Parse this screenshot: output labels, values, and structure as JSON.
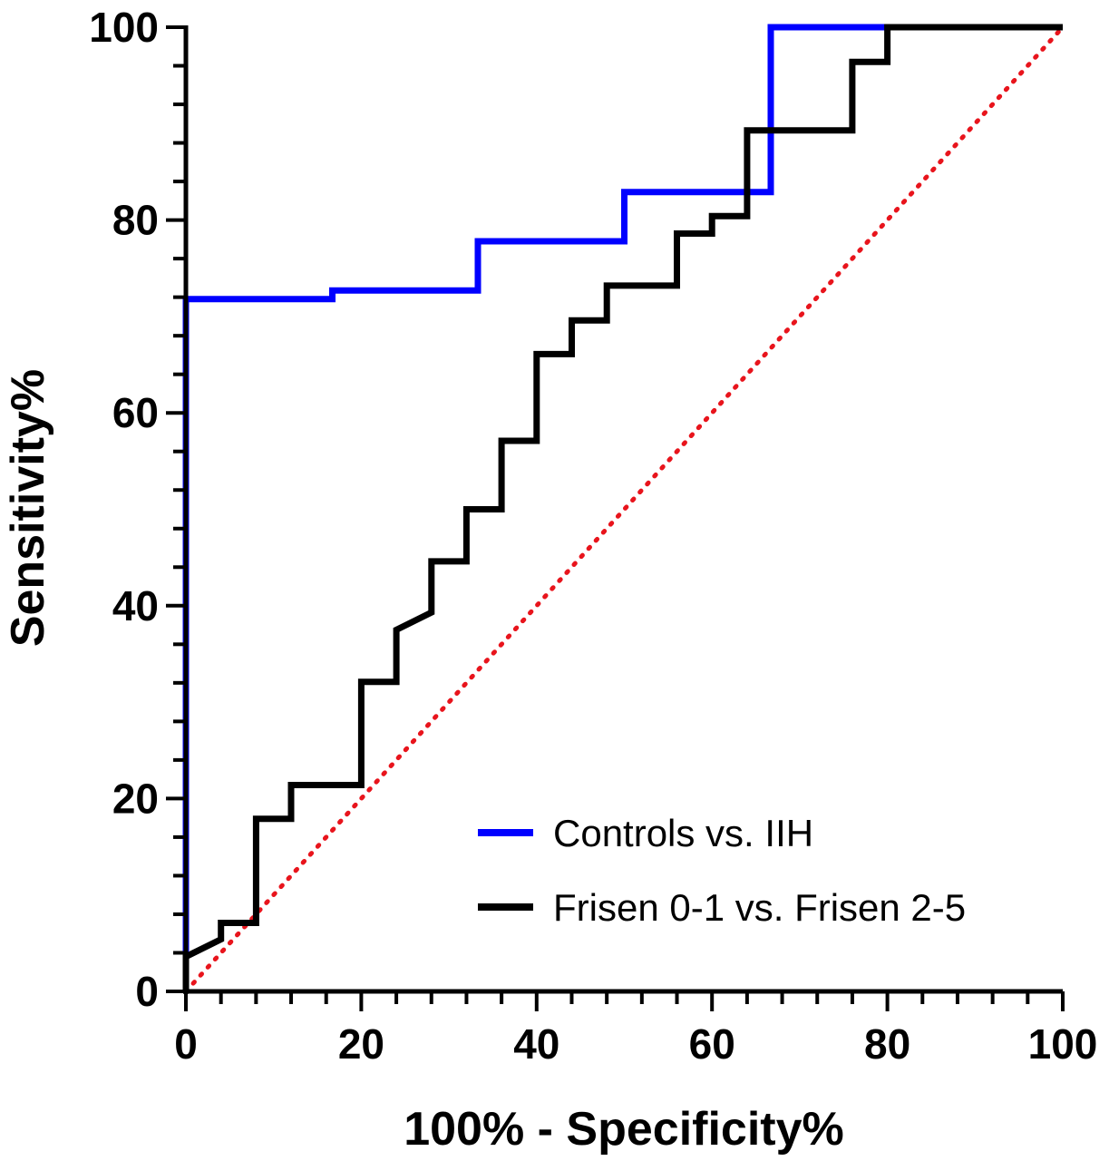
{
  "chart_data": {
    "type": "line",
    "title": "",
    "xlabel": "100% - Specificity%",
    "ylabel": "Sensitivity%",
    "xlim": [
      0,
      100
    ],
    "ylim": [
      0,
      100
    ],
    "x_ticks": [
      0,
      20,
      40,
      60,
      80,
      100
    ],
    "y_ticks": [
      0,
      20,
      40,
      60,
      80,
      100
    ],
    "x_tick_labels": [
      "0",
      "20",
      "40",
      "60",
      "80",
      "100"
    ],
    "y_tick_labels": [
      "0",
      "20",
      "40",
      "60",
      "80",
      "100"
    ],
    "grid": false,
    "legend_position": "bottom-right",
    "series": [
      {
        "name": "Controls vs. IIH",
        "color": "#0000ff",
        "step": true,
        "points": [
          [
            0,
            0
          ],
          [
            0,
            71.8
          ],
          [
            16.7,
            71.8
          ],
          [
            16.7,
            72.7
          ],
          [
            33.3,
            72.7
          ],
          [
            33.3,
            77.8
          ],
          [
            50,
            77.8
          ],
          [
            50,
            82.9
          ],
          [
            66.7,
            82.9
          ],
          [
            66.7,
            100
          ],
          [
            80,
            100
          ]
        ]
      },
      {
        "name": "Frisen 0-1 vs. Frisen 2-5",
        "color": "#000000",
        "step": true,
        "points": [
          [
            0,
            0
          ],
          [
            0,
            3.6
          ],
          [
            4,
            5.4
          ],
          [
            4,
            7.1
          ],
          [
            8,
            7.1
          ],
          [
            8,
            17.9
          ],
          [
            12,
            17.9
          ],
          [
            12,
            21.4
          ],
          [
            20,
            21.4
          ],
          [
            20,
            32.1
          ],
          [
            24,
            32.1
          ],
          [
            24,
            37.5
          ],
          [
            28,
            39.3
          ],
          [
            28,
            44.6
          ],
          [
            32,
            44.6
          ],
          [
            32,
            50
          ],
          [
            36,
            50
          ],
          [
            36,
            57.1
          ],
          [
            40,
            57.1
          ],
          [
            40,
            66.1
          ],
          [
            44,
            66.1
          ],
          [
            44,
            69.6
          ],
          [
            48,
            69.6
          ],
          [
            48,
            73.2
          ],
          [
            56,
            73.2
          ],
          [
            56,
            78.6
          ],
          [
            60,
            78.6
          ],
          [
            60,
            80.4
          ],
          [
            64,
            80.4
          ],
          [
            64,
            89.3
          ],
          [
            76,
            89.3
          ],
          [
            76,
            96.4
          ],
          [
            80,
            96.4
          ],
          [
            80,
            100
          ],
          [
            100,
            100
          ]
        ]
      }
    ],
    "reference_line": {
      "color": "#e8141c",
      "style": "dotted",
      "points": [
        [
          0,
          0
        ],
        [
          100,
          100
        ]
      ]
    }
  }
}
